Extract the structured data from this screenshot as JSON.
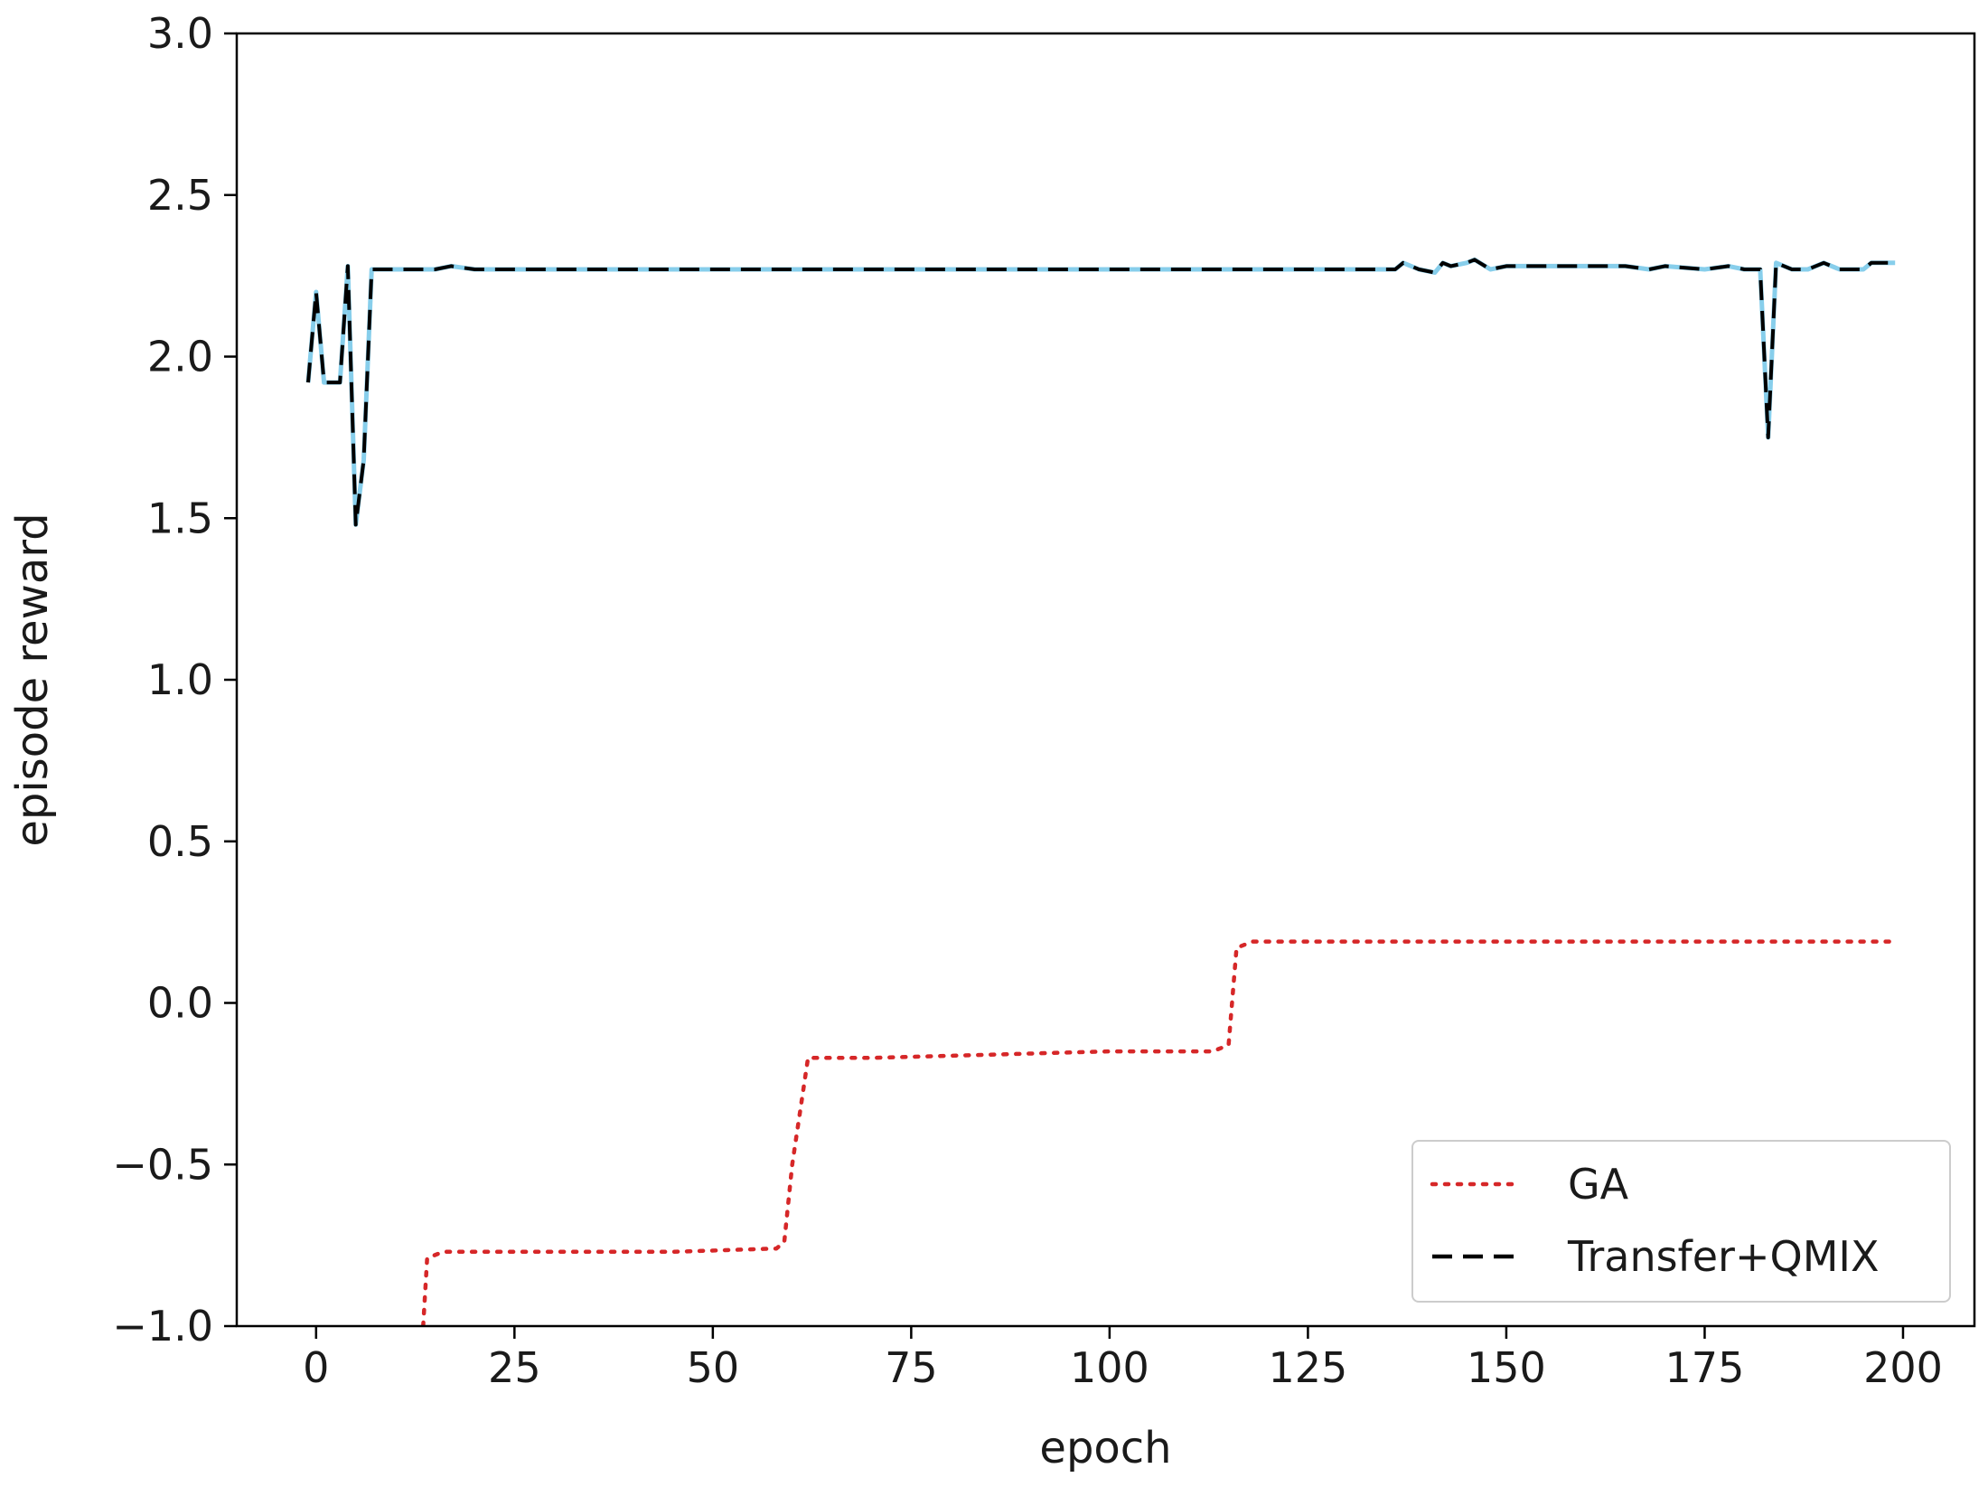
{
  "chart_data": {
    "type": "line",
    "title": "",
    "xlabel": "epoch",
    "ylabel": "episode reward",
    "xlim": [
      -10,
      209
    ],
    "ylim": [
      -1.0,
      3.0
    ],
    "x_ticks": [
      0,
      25,
      50,
      75,
      100,
      125,
      150,
      175,
      200
    ],
    "x_tick_labels": [
      "0",
      "25",
      "50",
      "75",
      "100",
      "125",
      "150",
      "175",
      "200"
    ],
    "y_ticks": [
      -1.0,
      -0.5,
      0.0,
      0.5,
      1.0,
      1.5,
      2.0,
      2.5,
      3.0
    ],
    "y_tick_labels": [
      "−1.0",
      "−0.5",
      "0.0",
      "0.5",
      "1.0",
      "1.5",
      "2.0",
      "2.5",
      "3.0"
    ],
    "grid": false,
    "legend_position": "lower-right",
    "series": [
      {
        "name": "GA",
        "color": "#d62728",
        "style": "dotted",
        "x": [
          13.5,
          14,
          16,
          30,
          45,
          58,
          59,
          60,
          62,
          70,
          85,
          100,
          113,
          115,
          116,
          118,
          130,
          150,
          175,
          199
        ],
        "y": [
          -1.0,
          -0.79,
          -0.77,
          -0.77,
          -0.77,
          -0.76,
          -0.74,
          -0.5,
          -0.17,
          -0.17,
          -0.16,
          -0.15,
          -0.15,
          -0.13,
          0.17,
          0.19,
          0.19,
          0.19,
          0.19,
          0.19
        ]
      },
      {
        "name": "Transfer+QMIX",
        "color": "#000000",
        "underlay_color": "#87ceeb",
        "style": "dashed",
        "x": [
          -1,
          0,
          1,
          2,
          3,
          4,
          5,
          6,
          7,
          8,
          10,
          15,
          17,
          20,
          30,
          50,
          80,
          100,
          130,
          136,
          137,
          139,
          141,
          142,
          143,
          145,
          146,
          148,
          150,
          152,
          155,
          160,
          165,
          168,
          170,
          175,
          178,
          180,
          182,
          183,
          184,
          186,
          188,
          190,
          192,
          195,
          196,
          197,
          198,
          199
        ],
        "y": [
          1.92,
          2.2,
          1.92,
          1.92,
          1.92,
          2.28,
          1.48,
          1.68,
          2.27,
          2.27,
          2.27,
          2.27,
          2.28,
          2.27,
          2.27,
          2.27,
          2.27,
          2.27,
          2.27,
          2.27,
          2.29,
          2.27,
          2.26,
          2.29,
          2.28,
          2.29,
          2.3,
          2.27,
          2.28,
          2.28,
          2.28,
          2.28,
          2.28,
          2.27,
          2.28,
          2.27,
          2.28,
          2.27,
          2.27,
          1.75,
          2.29,
          2.27,
          2.27,
          2.29,
          2.27,
          2.27,
          2.29,
          2.29,
          2.29,
          2.29
        ]
      }
    ]
  }
}
